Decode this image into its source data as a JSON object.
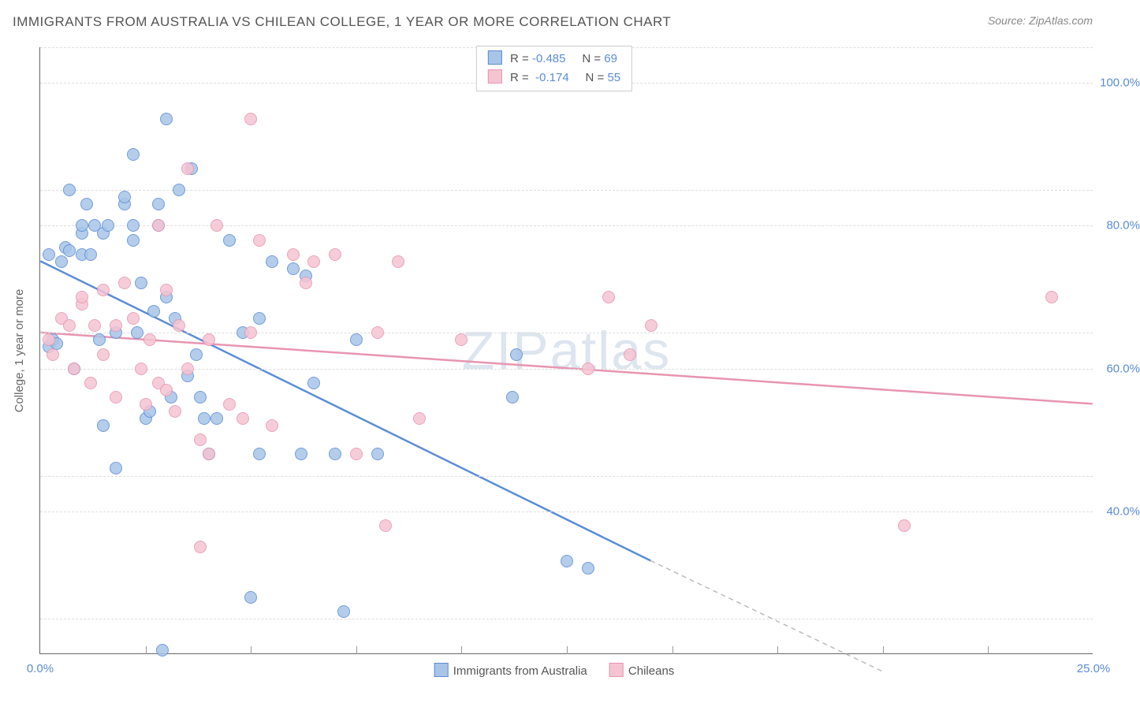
{
  "title": "IMMIGRANTS FROM AUSTRALIA VS CHILEAN COLLEGE, 1 YEAR OR MORE CORRELATION CHART",
  "source": "Source: ZipAtlas.com",
  "watermark": "ZIPatlas",
  "y_axis_title": "College, 1 year or more",
  "chart": {
    "type": "scatter",
    "background_color": "#ffffff",
    "grid_color": "#dddddd",
    "axis_color": "#666666",
    "xlim": [
      0,
      25
    ],
    "ylim": [
      20,
      105
    ],
    "x_ticks": [
      0,
      25
    ],
    "x_tick_labels": [
      "0.0%",
      "25.0%"
    ],
    "y_ticks": [
      40,
      60,
      80,
      100
    ],
    "y_tick_labels": [
      "40.0%",
      "60.0%",
      "80.0%",
      "100.0%"
    ],
    "x_minor_gridlines": [
      2.5,
      5,
      7.5,
      10,
      12.5,
      15,
      17.5,
      20,
      22.5
    ],
    "y_minor_gridlines": [
      25,
      45,
      65,
      85,
      105
    ],
    "point_radius": 8,
    "point_stroke_width": 1.5,
    "point_fill_opacity": 0.35,
    "line_width": 2.5,
    "series": [
      {
        "name": "Immigrants from Australia",
        "color_stroke": "#5a8dd6",
        "color_fill": "#a8c5e8",
        "R": "-0.485",
        "N": "69",
        "trend": {
          "x1": 0,
          "y1": 75,
          "x2": 14.5,
          "y2": 33,
          "ext_x2": 20,
          "ext_y2": 17.5
        },
        "points": [
          [
            0.2,
            63
          ],
          [
            0.2,
            76
          ],
          [
            0.3,
            64
          ],
          [
            0.4,
            63.5
          ],
          [
            0.5,
            75
          ],
          [
            0.6,
            77
          ],
          [
            0.7,
            76.5
          ],
          [
            0.7,
            85
          ],
          [
            0.8,
            60
          ],
          [
            1.0,
            76
          ],
          [
            1.0,
            79
          ],
          [
            1.0,
            80
          ],
          [
            1.1,
            83
          ],
          [
            1.2,
            76
          ],
          [
            1.3,
            80
          ],
          [
            1.4,
            64
          ],
          [
            1.5,
            52
          ],
          [
            1.5,
            79
          ],
          [
            1.6,
            80
          ],
          [
            1.8,
            46
          ],
          [
            1.8,
            65
          ],
          [
            2.0,
            83
          ],
          [
            2.0,
            84
          ],
          [
            2.2,
            78
          ],
          [
            2.2,
            80
          ],
          [
            2.2,
            90
          ],
          [
            2.3,
            65
          ],
          [
            2.4,
            72
          ],
          [
            2.5,
            53
          ],
          [
            2.6,
            54
          ],
          [
            2.7,
            68
          ],
          [
            2.8,
            80
          ],
          [
            2.8,
            83
          ],
          [
            2.9,
            20.5
          ],
          [
            3.0,
            70
          ],
          [
            3.0,
            95
          ],
          [
            3.1,
            56
          ],
          [
            3.2,
            67
          ],
          [
            3.3,
            85
          ],
          [
            3.5,
            59
          ],
          [
            3.6,
            88
          ],
          [
            3.7,
            62
          ],
          [
            3.8,
            56
          ],
          [
            3.9,
            53
          ],
          [
            4.0,
            48
          ],
          [
            4.2,
            53
          ],
          [
            4.5,
            78
          ],
          [
            4.8,
            65
          ],
          [
            5.0,
            28
          ],
          [
            5.2,
            48
          ],
          [
            5.2,
            67
          ],
          [
            5.5,
            75
          ],
          [
            6.0,
            74
          ],
          [
            6.2,
            48
          ],
          [
            6.3,
            73
          ],
          [
            6.5,
            58
          ],
          [
            7.0,
            48
          ],
          [
            7.2,
            26
          ],
          [
            7.5,
            64
          ],
          [
            8.0,
            48
          ],
          [
            11.2,
            56
          ],
          [
            11.3,
            62
          ],
          [
            12.5,
            33
          ],
          [
            13.0,
            32
          ]
        ]
      },
      {
        "name": "Chileans",
        "color_stroke": "#e895b0",
        "color_fill": "#f5c4d3",
        "R": "-0.174",
        "N": "55",
        "trend": {
          "x1": 0,
          "y1": 65,
          "x2": 25,
          "y2": 55
        },
        "points": [
          [
            0.2,
            64
          ],
          [
            0.3,
            62
          ],
          [
            0.5,
            67
          ],
          [
            0.7,
            66
          ],
          [
            0.8,
            60
          ],
          [
            1.0,
            69
          ],
          [
            1.0,
            70
          ],
          [
            1.2,
            58
          ],
          [
            1.3,
            66
          ],
          [
            1.5,
            62
          ],
          [
            1.5,
            71
          ],
          [
            1.8,
            56
          ],
          [
            1.8,
            66
          ],
          [
            2.0,
            72
          ],
          [
            2.2,
            67
          ],
          [
            2.4,
            60
          ],
          [
            2.5,
            55
          ],
          [
            2.6,
            64
          ],
          [
            2.8,
            58
          ],
          [
            2.8,
            80
          ],
          [
            3.0,
            57
          ],
          [
            3.0,
            71
          ],
          [
            3.2,
            54
          ],
          [
            3.3,
            66
          ],
          [
            3.5,
            60
          ],
          [
            3.5,
            88
          ],
          [
            3.8,
            35
          ],
          [
            3.8,
            50
          ],
          [
            4.0,
            48
          ],
          [
            4.0,
            64
          ],
          [
            4.2,
            80
          ],
          [
            4.5,
            55
          ],
          [
            4.8,
            53
          ],
          [
            5.0,
            65
          ],
          [
            5.0,
            95
          ],
          [
            5.2,
            78
          ],
          [
            5.5,
            52
          ],
          [
            6.0,
            76
          ],
          [
            6.3,
            72
          ],
          [
            6.5,
            75
          ],
          [
            7.0,
            76
          ],
          [
            7.5,
            48
          ],
          [
            8.0,
            65
          ],
          [
            8.2,
            38
          ],
          [
            8.5,
            75
          ],
          [
            9.0,
            53
          ],
          [
            10.0,
            64
          ],
          [
            13.0,
            60
          ],
          [
            13.5,
            70
          ],
          [
            14.0,
            62
          ],
          [
            14.5,
            66
          ],
          [
            20.5,
            38
          ],
          [
            24.0,
            70
          ]
        ]
      }
    ]
  },
  "legend_top_label_R": "R =",
  "legend_top_label_N": "N =",
  "colors": {
    "text": "#555555",
    "text_muted": "#888888",
    "accent_text": "#5a8dd6",
    "watermark": "#c8d4e6"
  }
}
